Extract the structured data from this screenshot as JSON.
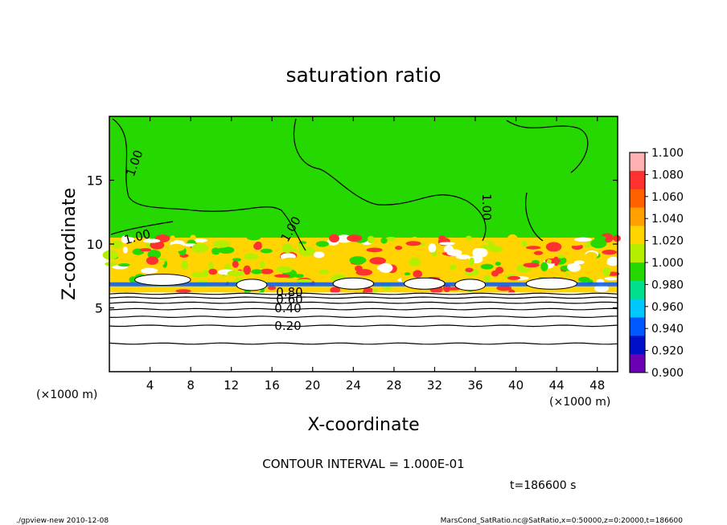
{
  "chart_data": {
    "type": "heatmap",
    "title": "saturation ratio",
    "xlabel": "X-coordinate",
    "ylabel": "Z-coordinate",
    "x_unit": "(×1000 m)",
    "xlim": [
      0,
      50
    ],
    "ylim": [
      0,
      20
    ],
    "x_ticks": [
      4,
      8,
      12,
      16,
      20,
      24,
      28,
      32,
      36,
      40,
      44,
      48
    ],
    "y_ticks": [
      5,
      10,
      15
    ],
    "colorbar": {
      "ticks": [
        "1.100",
        "1.080",
        "1.060",
        "1.040",
        "1.020",
        "1.000",
        "0.980",
        "0.960",
        "0.940",
        "0.920",
        "0.900"
      ],
      "colors": [
        "#ffb0b0",
        "#ff3030",
        "#ff6000",
        "#ffa000",
        "#ffd400",
        "#b6ee00",
        "#24d800",
        "#00e08c",
        "#00c8ff",
        "#0058ff",
        "#0010c8",
        "#6a00b4"
      ]
    },
    "contour_labels": [
      "1.00",
      "1.00",
      "1.00",
      "1.00",
      "0.80",
      "0.60",
      "0.40",
      "0.20"
    ],
    "contour_interval": "CONTOUR INTERVAL = 1.000E-01",
    "time": "t=186600  s",
    "footer_left": "./gpview-new  2010-12-08",
    "footer_right": "MarsCond_SatRatio.nc@SatRatio,x=0:50000,z=0:20000,t=186600",
    "field_colors": {
      "saturated": "#24d800",
      "supersat_low": "#b6ee00",
      "supersat_mid": "#ffd400",
      "supersat_high": "#ff3030",
      "subsat": "#0058ff",
      "dry": "#ffffff"
    }
  }
}
